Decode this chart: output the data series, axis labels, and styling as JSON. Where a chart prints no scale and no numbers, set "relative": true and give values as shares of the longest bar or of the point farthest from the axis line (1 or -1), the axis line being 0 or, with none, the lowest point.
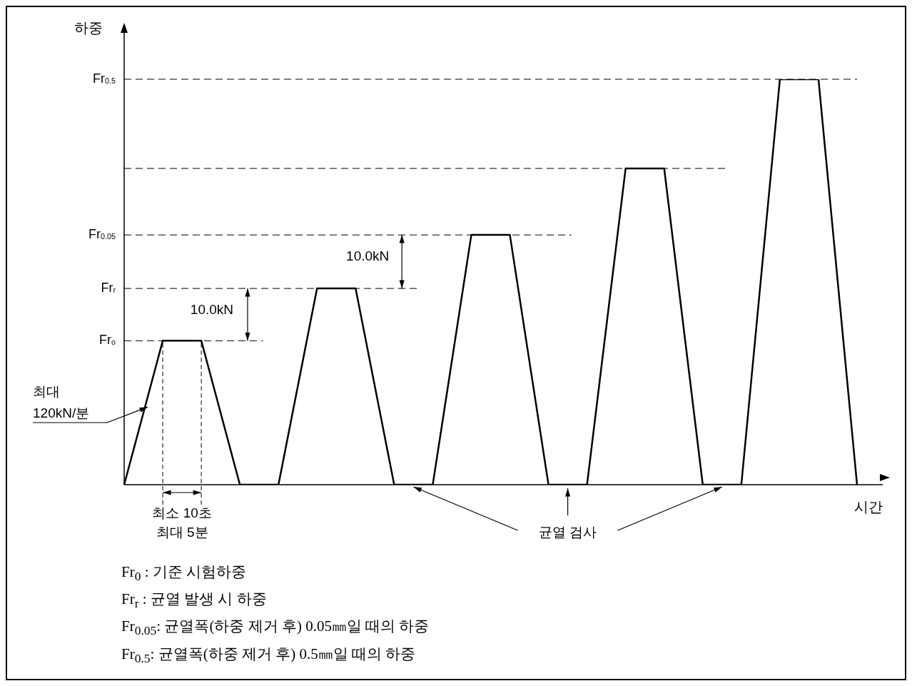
{
  "chart_data": {
    "type": "line",
    "relative": true,
    "xlabel": "시간",
    "ylabel": "하중",
    "categories": [
      null,
      null,
      null,
      null,
      null,
      null,
      null,
      null,
      null,
      null,
      null,
      null,
      null,
      null,
      null,
      null,
      null,
      null,
      null,
      null
    ],
    "series": [
      {
        "color": "#000000",
        "values": [
          0,
          0.355,
          0.355,
          0,
          0,
          0.484,
          0.484,
          0,
          0,
          0.616,
          0.616,
          0,
          0,
          0.78,
          0.78,
          0,
          0,
          1,
          1,
          0
        ]
      }
    ],
    "ref_lines": [
      {
        "axis": "y",
        "value": 0.355,
        "label": "Fr$_{o}$",
        "line_style": "dashed",
        "color": "#000000"
      },
      {
        "axis": "y",
        "value": 0.484,
        "label": "Fr$_{r}$",
        "line_style": "dashed",
        "color": "#000000"
      },
      {
        "axis": "y",
        "value": 0.616,
        "label": "Fr$_{0.05}$",
        "line_style": "dashed",
        "color": "#000000"
      },
      {
        "axis": "y",
        "value": 0.78,
        "label": null,
        "line_style": "dashed",
        "color": "#000000"
      },
      {
        "axis": "y",
        "value": 1,
        "label": "Fr$_{0.5}$",
        "line_style": "dashed",
        "color": "#000000"
      }
    ],
    "annotations": [
      "10.0kN",
      "10.0kN",
      "최대\n120kN/분",
      "최소 10초\n최대 5분",
      "균열 검사",
      "Fr$_{0}$ : 기준 시험하중",
      "Fr$_{r}$ : 균열 발생 시 하중",
      "Fr$_{0.05}$: 균열폭(하중 제거 후) 0.05㎜일 때의 하중",
      "Fr$_{0.5}$: 균열폭(하중 제거 후) 0.5㎜일 때의 하중"
    ]
  }
}
